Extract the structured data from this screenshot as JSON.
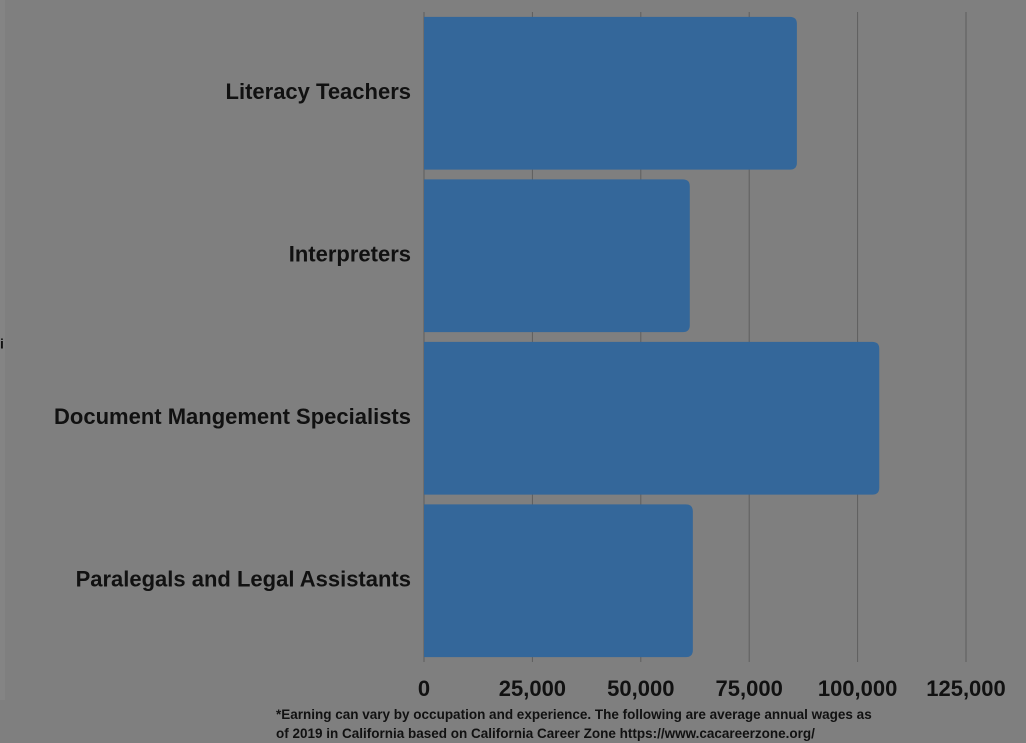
{
  "chart_data": {
    "type": "barh",
    "ylabel": "i",
    "categories": [
      "Literacy Teachers",
      "Interpreters",
      "Document Mangement Specialists",
      "Paralegals and Legal Assistants"
    ],
    "values": [
      86000,
      61300,
      105000,
      62000
    ],
    "color": "#34679a",
    "xlim": [
      0,
      125000
    ],
    "xticks": [
      0,
      {
        "value": 25000,
        "label": "25,000"
      },
      {
        "value": 50000,
        "label": "50,000"
      },
      {
        "value": 75000,
        "label": "75,000"
      },
      {
        "value": 100000,
        "label": "100,000"
      },
      {
        "value": 125000,
        "label": "125,000"
      }
    ],
    "grid": true,
    "note": [
      "*Earning can vary by occupation and experience. The following are average annual wages as",
      "of 2019 in California based on California Career Zone  https://www.cacareerzone.org/"
    ]
  }
}
